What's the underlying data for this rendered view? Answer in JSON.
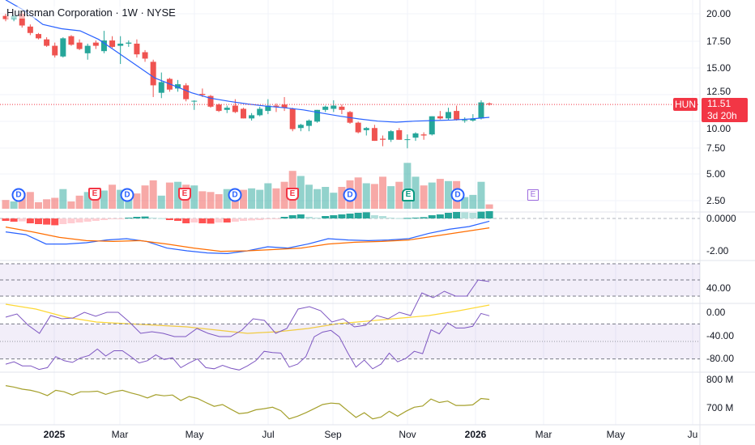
{
  "header": {
    "title": "Huntsman Corporation · 1W · NYSE"
  },
  "price_label": {
    "symbol": "HUN",
    "price": "11.51",
    "countdown": "3d 20h",
    "last": 11.51
  },
  "colors": {
    "up": "#26a69a",
    "down": "#ef5350",
    "ma": "#2962ff",
    "signal": "#ff6d00",
    "rsi": "#7e57c2",
    "rsi_ma": "#fdd835",
    "olive": "#a5a02c",
    "accent": "#f23645"
  },
  "axes": {
    "price": [
      "20.00",
      "17.50",
      "15.00",
      "12.50",
      "10.00",
      "7.50",
      "5.00",
      "2.50"
    ],
    "macd": [
      "0.0000",
      "-2.00"
    ],
    "rsi": [
      "40.00"
    ],
    "willr": [
      "0.00",
      "-40.00",
      "-80.00"
    ],
    "vol": [
      "800 M",
      "700 M"
    ],
    "time": [
      {
        "t": "2025",
        "bold": true
      },
      {
        "t": "Mar"
      },
      {
        "t": "May"
      },
      {
        "t": "Jul"
      },
      {
        "t": "Sep"
      },
      {
        "t": "Nov"
      },
      {
        "t": "2026",
        "bold": true
      },
      {
        "t": "Mar"
      },
      {
        "t": "May"
      },
      {
        "t": "Ju"
      }
    ]
  },
  "events": [
    {
      "type": "D",
      "label": "D"
    },
    {
      "type": "E",
      "label": "E"
    },
    {
      "type": "D",
      "label": "D"
    },
    {
      "type": "E",
      "label": "E"
    },
    {
      "type": "D",
      "label": "D"
    },
    {
      "type": "E",
      "label": "E"
    },
    {
      "type": "D",
      "label": "D"
    },
    {
      "type": "EG",
      "label": "E"
    },
    {
      "type": "D",
      "label": "D"
    },
    {
      "type": "EF",
      "label": "E"
    }
  ],
  "candles": [
    [
      19.8,
      20.0,
      19.3,
      19.5
    ],
    [
      19.5,
      19.9,
      19.3,
      19.8
    ],
    [
      20.0,
      20.2,
      18.7,
      18.9
    ],
    [
      18.8,
      19.0,
      18.0,
      18.2
    ],
    [
      18.1,
      18.2,
      17.6,
      17.7
    ],
    [
      17.6,
      17.8,
      16.9,
      17.0
    ],
    [
      17.0,
      17.3,
      15.9,
      16.1
    ],
    [
      16.0,
      17.8,
      15.9,
      17.7
    ],
    [
      17.9,
      18.0,
      17.0,
      17.1
    ],
    [
      17.3,
      17.6,
      16.6,
      16.7
    ],
    [
      16.3,
      17.2,
      15.7,
      17.0
    ],
    [
      17.3,
      17.5,
      16.7,
      17.0
    ],
    [
      16.5,
      18.4,
      16.3,
      17.5
    ],
    [
      17.5,
      17.9,
      16.8,
      16.9
    ],
    [
      17.0,
      17.9,
      15.3,
      17.2
    ],
    [
      17.2,
      17.5,
      16.9,
      17.3
    ],
    [
      17.2,
      17.6,
      15.9,
      16.2
    ],
    [
      16.4,
      16.6,
      15.5,
      15.8
    ],
    [
      15.5,
      15.7,
      12.2,
      13.3
    ],
    [
      12.6,
      14.5,
      12.1,
      13.6
    ],
    [
      13.9,
      14.0,
      12.7,
      12.9
    ],
    [
      13.0,
      13.8,
      12.7,
      13.4
    ],
    [
      13.3,
      13.5,
      11.8,
      12.0
    ],
    [
      11.8,
      11.9,
      11.0,
      11.85
    ],
    [
      12.5,
      13.0,
      12.2,
      12.4
    ],
    [
      12.3,
      12.4,
      11.2,
      11.3
    ],
    [
      11.5,
      11.6,
      10.8,
      10.9
    ],
    [
      11.0,
      11.4,
      10.7,
      11.2
    ],
    [
      11.4,
      12.0,
      10.7,
      10.8
    ],
    [
      11.1,
      11.2,
      10.2,
      10.2
    ],
    [
      10.2,
      10.7,
      10.0,
      10.5
    ],
    [
      10.5,
      11.3,
      10.4,
      11.1
    ],
    [
      10.9,
      12.0,
      10.6,
      11.4
    ],
    [
      11.4,
      11.6,
      10.8,
      11.3
    ],
    [
      11.5,
      12.2,
      10.9,
      11.2
    ],
    [
      11.1,
      11.2,
      9.0,
      9.2
    ],
    [
      9.3,
      9.7,
      9.0,
      9.6
    ],
    [
      9.5,
      10.1,
      9.0,
      10.0
    ],
    [
      9.9,
      11.0,
      9.8,
      11.0
    ],
    [
      11.0,
      11.4,
      10.8,
      11.3
    ],
    [
      11.1,
      11.9,
      10.8,
      11.4
    ],
    [
      11.3,
      11.5,
      10.6,
      11.0
    ],
    [
      10.8,
      10.9,
      9.7,
      9.8
    ],
    [
      9.8,
      9.9,
      8.8,
      8.9
    ],
    [
      9.1,
      9.4,
      8.6,
      9.3
    ],
    [
      9.3,
      9.6,
      8.1,
      8.1
    ],
    [
      8.3,
      8.6,
      7.6,
      8.2
    ],
    [
      8.2,
      9.1,
      8.0,
      9.0
    ],
    [
      9.1,
      9.3,
      8.2,
      8.2
    ],
    [
      8.2,
      8.7,
      7.4,
      8.25
    ],
    [
      8.4,
      8.9,
      8.1,
      8.8
    ],
    [
      8.7,
      8.9,
      8.2,
      8.6
    ],
    [
      8.7,
      10.4,
      8.6,
      10.4
    ],
    [
      10.4,
      10.9,
      10.1,
      10.2
    ],
    [
      10.2,
      11.2,
      10.0,
      10.8
    ],
    [
      10.9,
      11.4,
      10.0,
      10.1
    ],
    [
      10.0,
      10.3,
      9.8,
      10.05
    ],
    [
      10.0,
      10.6,
      9.9,
      10.2
    ],
    [
      10.2,
      11.9,
      10.1,
      11.7
    ],
    [
      11.6,
      11.7,
      11.4,
      11.51
    ]
  ],
  "ma_curve": [
    21.3,
    20.3,
    19.0,
    18.6,
    18.4,
    17.6,
    16.4,
    15.2,
    14.0,
    13.3,
    12.6,
    12.1,
    11.8,
    11.55,
    11.35,
    11.2,
    11.0,
    10.7,
    10.4,
    10.15,
    9.95,
    9.85,
    9.95,
    10.0,
    10.05,
    10.15,
    10.3
  ],
  "volume": [
    12,
    10,
    22,
    23,
    9,
    13,
    15,
    27,
    10,
    18,
    23,
    24,
    25,
    33,
    26,
    26,
    21,
    32,
    39,
    18,
    36,
    37,
    33,
    32,
    24,
    23,
    20,
    27,
    27,
    26,
    28,
    26,
    35,
    28,
    37,
    52,
    45,
    33,
    27,
    30,
    22,
    30,
    39,
    43,
    35,
    34,
    44,
    31,
    37,
    63,
    44,
    32,
    36,
    41,
    38,
    38,
    16,
    19,
    37,
    6
  ],
  "macd": {
    "line": [
      -0.83,
      -1.0,
      -1.58,
      -1.58,
      -1.5,
      -1.33,
      -1.25,
      -1.42,
      -1.83,
      -2.0,
      -2.13,
      -2.17,
      -2.0,
      -1.75,
      -1.83,
      -1.58,
      -1.25,
      -1.33,
      -1.37,
      -1.33,
      -1.25,
      -0.92,
      -0.67,
      -0.5,
      -0.17
    ],
    "signal": [
      -0.53,
      -0.83,
      -1.17,
      -1.37,
      -1.42,
      -1.37,
      -1.58,
      -1.83,
      -2.03,
      -2.0,
      -1.92,
      -1.83,
      -1.58,
      -1.47,
      -1.42,
      -1.33,
      -1.08,
      -0.83,
      -0.58
    ],
    "hist": [
      -0.15,
      -0.2,
      -0.18,
      -0.3,
      -0.35,
      -0.38,
      -0.42,
      -0.35,
      -0.3,
      -0.25,
      -0.2,
      -0.15,
      -0.1,
      -0.05,
      -0.02,
      0.05,
      0.1,
      0.12,
      0.05,
      0.02,
      -0.1,
      -0.15,
      -0.3,
      -0.25,
      -0.3,
      -0.32,
      -0.25,
      -0.25,
      -0.2,
      -0.15,
      -0.12,
      -0.1,
      -0.05,
      -0.02,
      0.1,
      0.2,
      0.25,
      0.1,
      0.05,
      0.15,
      0.2,
      0.25,
      0.3,
      0.35,
      0.38,
      0.2,
      0.15,
      0.05,
      0.02,
      0.03,
      0.05,
      0.08,
      0.2,
      0.25,
      0.35,
      0.4,
      0.38,
      0.35,
      0.42,
      0.45
    ]
  },
  "rsi": {
    "line": [
      37,
      39,
      32,
      27,
      38,
      36,
      36.5,
      40,
      37.6,
      40,
      40,
      34,
      27,
      28,
      27,
      25,
      25,
      30,
      27,
      25,
      25,
      29,
      36,
      35,
      27,
      30,
      42,
      43.5,
      41,
      34,
      36,
      31,
      32,
      38,
      36,
      40,
      38,
      52,
      49,
      53,
      50,
      50,
      60,
      59
    ],
    "ma": [
      45,
      42,
      37,
      34,
      33,
      32,
      31,
      29,
      27,
      28,
      30,
      33,
      34.6,
      36.3,
      38,
      41,
      44.5
    ]
  },
  "willr": [
    -89,
    -85,
    -92,
    -92,
    -98,
    -95,
    -76,
    -83,
    -86,
    -78,
    -74,
    -63,
    -75,
    -66,
    -66,
    -76,
    -87,
    -83,
    -73,
    -81,
    -78,
    -95,
    -87,
    -80,
    -95,
    -97,
    -91,
    -96,
    -99,
    -92,
    -83,
    -67,
    -69,
    -70,
    -94,
    -89,
    -76,
    -42,
    -34,
    -31,
    -42,
    -69,
    -94,
    -82,
    -97,
    -89,
    -70,
    -85,
    -79,
    -67,
    -71,
    -30,
    -37,
    -18,
    -27,
    -27,
    -24,
    -2,
    -6
  ],
  "volume_line": [
    776,
    771,
    764,
    760,
    753,
    742,
    760,
    755,
    744,
    755,
    755,
    757,
    746,
    755,
    760,
    751,
    744,
    734,
    745,
    741,
    744,
    725,
    739,
    732,
    718,
    705,
    711,
    695,
    680,
    683,
    693,
    697,
    702,
    690,
    662,
    671,
    683,
    697,
    711,
    716,
    714,
    690,
    667,
    683,
    662,
    668,
    688,
    671,
    688,
    702,
    706,
    730,
    718,
    723,
    708,
    708,
    710,
    732,
    729
  ]
}
